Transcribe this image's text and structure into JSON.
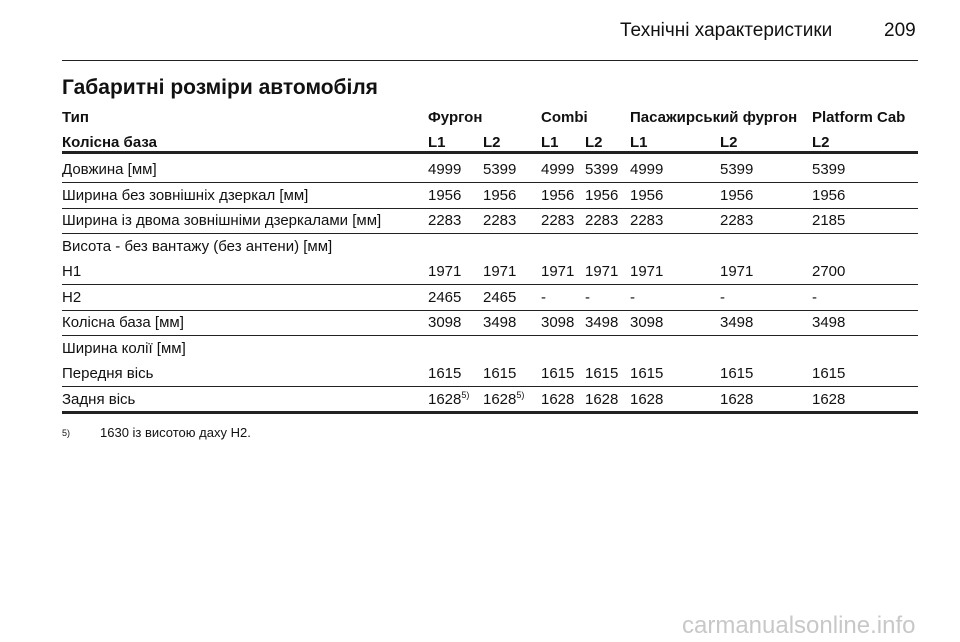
{
  "header": {
    "title": "Технічні характеристики",
    "page": "209"
  },
  "section_title": "Габаритні розміри автомобіля",
  "table": {
    "header_top": [
      "Тип",
      "Фургон",
      "Combi",
      "Пасажирський фургон",
      "Platform Cab"
    ],
    "header_bottom": [
      "Колісна база",
      "L1",
      "L2",
      "L1",
      "L2",
      "L1",
      "L2",
      "L2"
    ],
    "rows": [
      {
        "label": "Довжина [мм]",
        "cells": [
          "4999",
          "5399",
          "4999",
          "5399",
          "4999",
          "5399",
          "5399"
        ]
      },
      {
        "label": "Ширина без зовнішніх дзеркал [мм]",
        "cells": [
          "1956",
          "1956",
          "1956",
          "1956",
          "1956",
          "1956",
          "1956"
        ]
      },
      {
        "label": "Ширина із двома зовнішніми дзеркалами [мм]",
        "cells": [
          "2283",
          "2283",
          "2283",
          "2283",
          "2283",
          "2283",
          "2185"
        ]
      },
      {
        "label": "Висота - без вантажу (без антени) [мм]"
      },
      {
        "label": "H1",
        "cells": [
          "1971",
          "1971",
          "1971",
          "1971",
          "1971",
          "1971",
          "2700"
        ]
      },
      {
        "label": "H2",
        "cells": [
          "2465",
          "2465",
          "-",
          "-",
          "-",
          "-",
          "-"
        ]
      },
      {
        "label": "Колісна база [мм]",
        "cells": [
          "3098",
          "3498",
          "3098",
          "3498",
          "3098",
          "3498",
          "3498"
        ]
      },
      {
        "label": "Ширина колії [мм]"
      },
      {
        "label": "Передня вісь",
        "cells": [
          "1615",
          "1615",
          "1615",
          "1615",
          "1615",
          "1615",
          "1615"
        ]
      },
      {
        "label": "Задня вісь",
        "cells": [
          {
            "text": "1628",
            "sup": "5)"
          },
          {
            "text": "1628",
            "sup": "5)"
          },
          "1628",
          "1628",
          "1628",
          "1628",
          "1628"
        ]
      }
    ]
  },
  "footnote": {
    "mark": "5)",
    "text": "1630 із висотою даху H2."
  },
  "watermark": "carmanualsonline.info"
}
